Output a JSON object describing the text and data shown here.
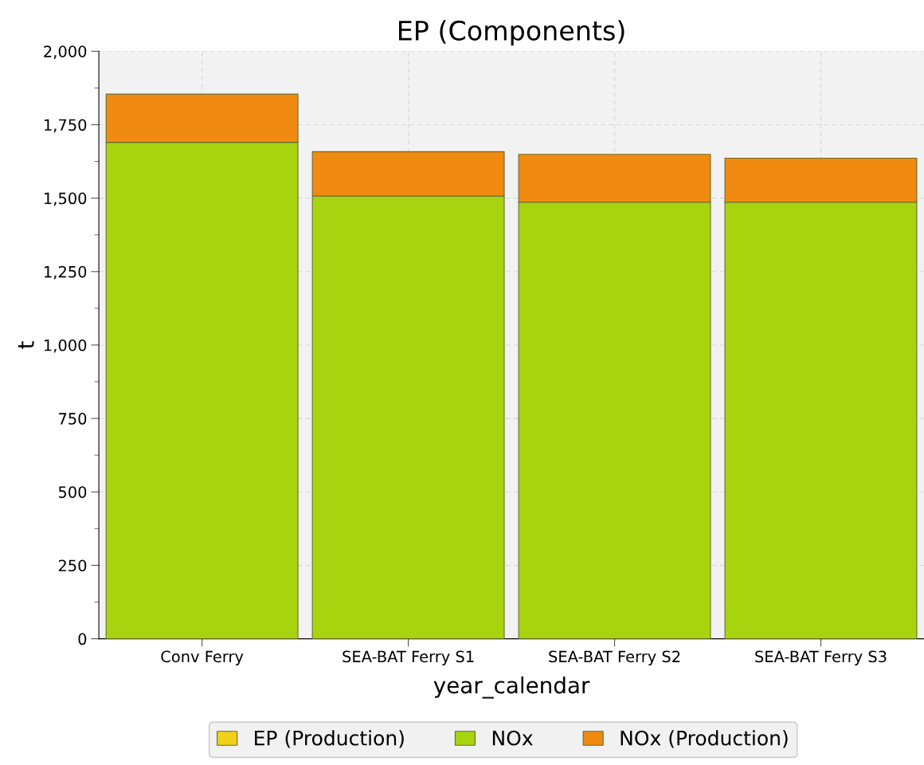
{
  "chart_data": {
    "type": "bar",
    "title": "EP (Components)",
    "xlabel": "year_calendar",
    "ylabel": "t",
    "categories": [
      "Conv Ferry",
      "SEA-BAT Ferry S1",
      "SEA-BAT Ferry S2",
      "SEA-BAT Ferry S3"
    ],
    "stacked": true,
    "series": [
      {
        "name": "EP (Production)",
        "color": "#f2d11a",
        "values": [
          0,
          0,
          0,
          0
        ]
      },
      {
        "name": "NOx",
        "color": "#a8d40f",
        "values": [
          1690,
          1507,
          1486,
          1486
        ]
      },
      {
        "name": "NOx (Production)",
        "color": "#f08a10",
        "values": [
          164,
          151,
          163,
          150
        ]
      }
    ],
    "ylim": [
      0,
      2000
    ],
    "yticks": [
      0,
      {
        "value": 250,
        "label": "250"
      },
      {
        "value": 500,
        "label": "500"
      },
      {
        "value": 750,
        "label": "750"
      },
      {
        "value": 1000,
        "label": "1,000"
      },
      {
        "value": 1250,
        "label": "1,250"
      },
      {
        "value": 1500,
        "label": "1,500"
      },
      {
        "value": 1750,
        "label": "1,750"
      },
      {
        "value": 2000,
        "label": "2,000"
      }
    ],
    "grid": true,
    "legend": "bottom"
  }
}
